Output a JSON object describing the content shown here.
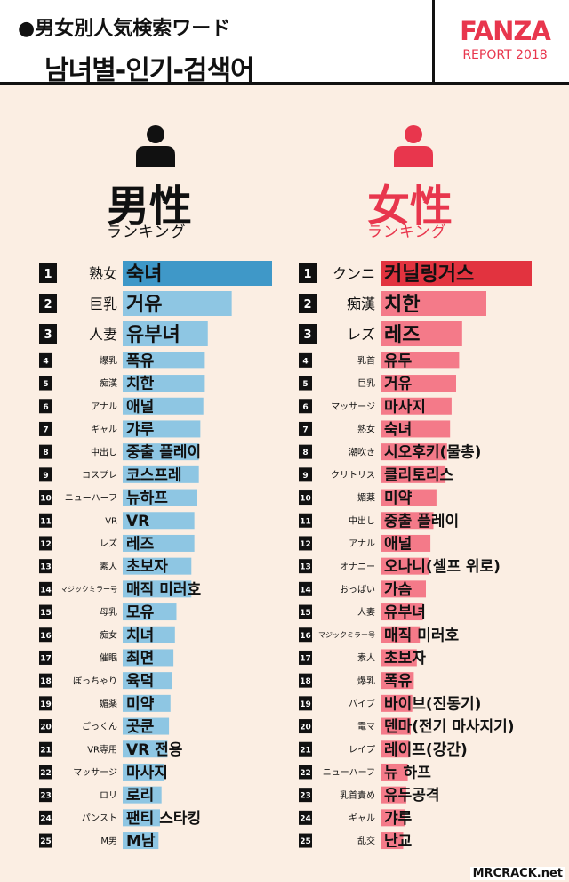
{
  "header": {
    "subtitle": "●男女別人気検索ワード",
    "title": "남녀별-인기-검색어",
    "brand": "FANZA",
    "report": "REPORT 2018"
  },
  "sections": {
    "male": {
      "title": "男性",
      "sub": "ランキング",
      "icon_color": "#111111"
    },
    "female": {
      "title": "女性",
      "sub": "ランキング",
      "icon_color": "#e8364d"
    }
  },
  "watermark": "MRCRACK.net",
  "colors": {
    "male_bar": "#8ec6e3",
    "male_top": "#3f98c8",
    "female_bar": "#f47a89",
    "female_top": "#e2333f"
  },
  "chart_data": [
    {
      "type": "bar",
      "title": "男性 ランキング",
      "ranks": [
        1,
        2,
        3,
        4,
        5,
        6,
        7,
        8,
        9,
        10,
        11,
        12,
        13,
        14,
        15,
        16,
        17,
        18,
        19,
        20,
        21,
        22,
        23,
        24,
        25
      ],
      "categories": [
        "熟女",
        "巨乳",
        "人妻",
        "爆乳",
        "痴漢",
        "アナル",
        "ギャル",
        "中出し",
        "コスプレ",
        "ニューハーフ",
        "VR",
        "レズ",
        "素人",
        "マジックミラー号",
        "母乳",
        "痴女",
        "催眠",
        "ぼっちゃり",
        "媚薬",
        "ごっくん",
        "VR専用",
        "マッサージ",
        "ロリ",
        "パンスト",
        "M男"
      ],
      "labels_kr": [
        "숙녀",
        "거유",
        "유부녀",
        "폭유",
        "치한",
        "애널",
        "갸루",
        "중출 플레이",
        "코스프레",
        "뉴하프",
        "VR",
        "레즈",
        "초보자",
        "매직 미러호",
        "모유",
        "치녀",
        "최면",
        "육덕",
        "미약",
        "곳쿤",
        "VR 전용",
        "마사지",
        "로리",
        "팬티 스타킹",
        "M남"
      ],
      "values": [
        100,
        73,
        57,
        55,
        55,
        54,
        52,
        51,
        51,
        50,
        48,
        48,
        46,
        46,
        36,
        35,
        34,
        33,
        32,
        31,
        30,
        28,
        26,
        25,
        24
      ]
    },
    {
      "type": "bar",
      "title": "女性 ランキング",
      "ranks": [
        1,
        2,
        3,
        4,
        5,
        6,
        7,
        8,
        9,
        10,
        11,
        12,
        13,
        14,
        15,
        16,
        17,
        18,
        19,
        20,
        21,
        22,
        23,
        24,
        25
      ],
      "categories": [
        "クンニ",
        "痴漢",
        "レズ",
        "乳首",
        "巨乳",
        "マッサージ",
        "熟女",
        "潮吹き",
        "クリトリス",
        "媚薬",
        "中出し",
        "アナル",
        "オナニー",
        "おっぱい",
        "人妻",
        "マジックミラー号",
        "素人",
        "爆乳",
        "バイブ",
        "電マ",
        "レイプ",
        "ニューハーフ",
        "乳首責め",
        "ギャル",
        "乱交"
      ],
      "labels_kr": [
        "커닐링거스",
        "치한",
        "레즈",
        "유두",
        "거유",
        "마사지",
        "숙녀",
        "시오후키(물총)",
        "클리토리스",
        "미약",
        "중출 플레이",
        "애널",
        "오나니(셀프 위로)",
        "가슴",
        "유부녀",
        "매직 미러호",
        "초보자",
        "폭유",
        "바이브(진동기)",
        "덴마(전기 마사지기)",
        "레이프(강간)",
        "뉴 하프",
        "유두공격",
        "갸루",
        "난교"
      ],
      "values": [
        100,
        70,
        54,
        52,
        50,
        47,
        46,
        44,
        43,
        37,
        35,
        33,
        32,
        30,
        28,
        26,
        24,
        22,
        21,
        20,
        19,
        18,
        17,
        16,
        15
      ]
    }
  ]
}
